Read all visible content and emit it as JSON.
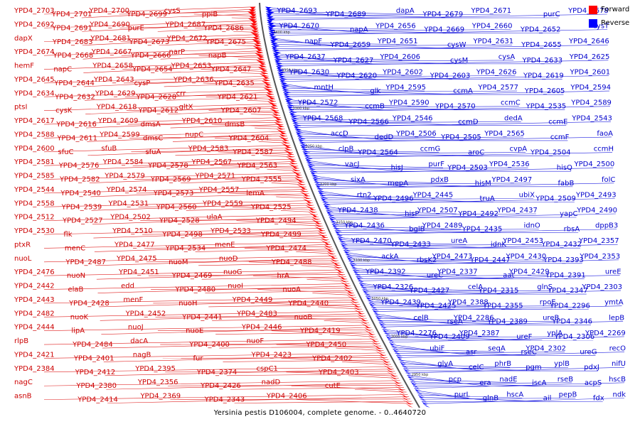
{
  "caption": "Yersinia pestis D106004, complete genome. - 0..4640720",
  "legend": {
    "forward_label": "Forward",
    "forward_color": "#ff0000",
    "reverse_label": "Reverse",
    "reverse_color": "#0000ff"
  },
  "colors": {
    "forward_text": "#cc0000",
    "forward_line": "#e02020",
    "reverse_text": "#0000cc",
    "reverse_line": "#2020e0",
    "backbone": "#555555"
  },
  "scale_ticks": [
    "3400 kbp",
    "3350 kbp",
    "3300 kbp",
    "3250 kbp",
    "3200 kbp",
    "3150 kbp",
    "3100 kbp",
    "3050 kbp",
    "3000 kbp",
    "2950 kbp"
  ],
  "forward_genes": [
    "YPD4_2703",
    "YPD4_2701",
    "YPD4_2700",
    "YPD4_2699",
    "cysS",
    "ppiB",
    "YPD4_2692",
    "YPD4_2691",
    "YPD4_2690",
    "purE",
    "YPD4_2687",
    "YPD4_2686",
    "dapX",
    "YPD4_2683",
    "YPD4_2681",
    "YPD4_2673",
    "YPD4_2672",
    "YPD4_2675",
    "YPD4_2674",
    "YPD4_2668",
    "YPD4_2667",
    "YPD4_2666",
    "narP",
    "napB",
    "hemF",
    "napC",
    "YPD4_2658",
    "YPD4_2654",
    "YPD4_2653",
    "YPD4_2647",
    "YPD4_2645",
    "YPD4_2644",
    "YPD4_2643",
    "cysP",
    "YPD4_2636",
    "YPD4_2635",
    "YPD4_2634",
    "YPD4_2632",
    "YPD4_2629",
    "YPD4_2628",
    "crr",
    "YPD4_2621",
    "ptsI",
    "cysK",
    "YPD4_2618",
    "YPD4_2612",
    "gltX",
    "YPD4_2607",
    "YPD4_2617",
    "YPD4_2616",
    "YPD4_2609",
    "dmsA",
    "YPD4_2610",
    "dmsB",
    "YPD4_2588",
    "YPD4_2611",
    "YPD4_2599",
    "dmsC",
    "nupC",
    "YPD4_2604",
    "YPD4_2600",
    "sfuC",
    "sfuB",
    "sfuA",
    "YPD4_2583",
    "YPD4_2587",
    "YPD4_2581",
    "YPD4_2576",
    "YPD4_2584",
    "YPD4_2578",
    "YPD4_2567",
    "YPD4_2563",
    "YPD4_2585",
    "YPD4_2582",
    "YPD4_2579",
    "YPD4_2569",
    "YPD4_2571",
    "YPD4_2555",
    "YPD4_2544",
    "YPD4_2540",
    "YPD4_2574",
    "YPD4_2573",
    "YPD4_2557",
    "lemA",
    "YPD4_2558",
    "YPD4_2539",
    "YPD4_2531",
    "YPD4_2560",
    "YPD4_2559",
    "YPD4_2525",
    "YPD4_2512",
    "YPD4_2527",
    "YPD4_2502",
    "YPD4_2528",
    "ulaA",
    "YPD4_2494",
    "YPD4_2530",
    "flk",
    "YPD4_2510",
    "YPD4_2498",
    "YPD4_2533",
    "YPD4_2499",
    "ptxR",
    "menC",
    "YPD4_2477",
    "YPD4_2534",
    "menE",
    "YPD4_2474",
    "nuoL",
    "YPD4_2487",
    "YPD4_2475",
    "nuoM",
    "nuoD",
    "YPD4_2488",
    "YPD4_2476",
    "nuoN",
    "YPD4_2451",
    "YPD4_2469",
    "nuoG",
    "hrA",
    "YPD4_2442",
    "elaB",
    "edd",
    "YPD4_2480",
    "nuoI",
    "nuoA",
    "YPD4_2443",
    "YPD4_2428",
    "menF",
    "nuoH",
    "YPD4_2449",
    "YPD4_2440",
    "YPD4_2482",
    "nuoK",
    "YPD4_2452",
    "YPD4_2441",
    "YPD4_2483",
    "nuoB",
    "YPD4_2444",
    "lipA",
    "nuoJ",
    "nuoE",
    "YPD4_2446",
    "YPD4_2419",
    "rlpB",
    "YPD4_2484",
    "dacA",
    "YPD4_2400",
    "nuoF",
    "YPD4_2450",
    "YPD4_2421",
    "YPD4_2401",
    "nagB",
    "fur",
    "YPD4_2423",
    "YPD4_2402",
    "YPD4_2384",
    "YPD4_2412",
    "YPD4_2395",
    "YPD4_2374",
    "cspC1",
    "YPD4_2403",
    "nagC",
    "YPD4_2380",
    "YPD4_2356",
    "YPD4_2426",
    "nadD",
    "cutE",
    "asnB",
    "YPD4_2414",
    "YPD4_2369",
    "YPD4_2343",
    "YPD4_2406"
  ],
  "reverse_genes": [
    "YPD4_2693",
    "YPD4_2689",
    "dapA",
    "YPD4_2679",
    "YPD4_2671",
    "purC",
    "YPD4_2678",
    "YPD4_2670",
    "napA",
    "YPD4_2656",
    "YPD4_2669",
    "YPD4_2660",
    "YPD4_2652",
    "cysT",
    "napF",
    "YPD4_2659",
    "YPD4_2651",
    "cysW",
    "YPD4_2631",
    "YPD4_2655",
    "YPD4_2646",
    "YPD4_2637",
    "YPD4_2627",
    "YPD4_2606",
    "cysM",
    "cysA",
    "YPD4_2633",
    "YPD4_2625",
    "YPD4_2630",
    "YPD4_2620",
    "YPD4_2602",
    "YPD4_2603",
    "YPD4_2626",
    "YPD4_2619",
    "YPD4_2601",
    "mntH",
    "glk",
    "YPD4_2595",
    "ccmA",
    "YPD4_2577",
    "YPD4_2605",
    "YPD4_2594",
    "YPD4_2572",
    "ccmB",
    "YPD4_2590",
    "YPD4_2570",
    "ccmC",
    "YPD4_2535",
    "YPD4_2589",
    "YPD4_2568",
    "YPD4_2566",
    "YPD4_2546",
    "ccmD",
    "dedA",
    "ccmE",
    "YPD4_2543",
    "accD",
    "dedD",
    "YPD4_2506",
    "YPD4_2505",
    "YPD4_2565",
    "ccmF",
    "faoA",
    "clpB",
    "YPD4_2564",
    "ccmG",
    "aroC",
    "cvpA",
    "YPD4_2504",
    "ccmH",
    "vacJ",
    "hisJ",
    "purF",
    "YPD4_2503",
    "YPD4_2536",
    "hisQ",
    "YPD4_2500",
    "sixA",
    "mepA",
    "pdxB",
    "hisM",
    "YPD4_2497",
    "fabB",
    "folC",
    "rtn2",
    "YPD4_2496",
    "YPD4_2445",
    "truA",
    "ubiX",
    "YPD4_2509",
    "YPD4_2493",
    "YPD4_2438",
    "hisP",
    "YPD4_2507",
    "YPD4_2492",
    "YPD4_2437",
    "yapC",
    "YPD4_2490",
    "YPD4_2436",
    "bglB",
    "YPD4_2489",
    "YPD4_2435",
    "idnO",
    "rbsA",
    "dppB3",
    "YPD4_2470",
    "YPD4_2433",
    "ureA",
    "idnK",
    "YPD4_2453",
    "YPD4_2432",
    "YPD4_2357",
    "ackA",
    "rbsK2",
    "YPD4_2473",
    "YPD4_2447",
    "YPD4_2430",
    "YPD4_2393",
    "YPD4_2353",
    "YPD4_2392",
    "ureC",
    "YPD4_2337",
    "aat",
    "YPD4_2429",
    "YPD4_2391",
    "ureE",
    "YPD4_2326",
    "YPD4_2427",
    "celA",
    "YPD4_2315",
    "glnS",
    "YPD4_2347",
    "YPD4_2303",
    "YPD4_2439",
    "YPD4_2425",
    "YPD4_2388",
    "YPD4_2355",
    "rpoE",
    "YPD4_2296",
    "ymtA",
    "celB",
    "rseA",
    "YPD4_2286",
    "YPD4_2389",
    "ureB",
    "YPD4_2346",
    "lepB",
    "YPD4_2276",
    "YPD4_2409",
    "YPD4_2387",
    "ureF",
    "yplA",
    "YPD4_2306",
    "YPD4_2269",
    "ubiF",
    "asr",
    "seqA",
    "rseC",
    "YPD4_2302",
    "ureG",
    "recO",
    "glyA",
    "celC",
    "phrB",
    "pgm",
    "yplB",
    "pdxJ",
    "nifU",
    "pcp",
    "era",
    "nadE",
    "iscA",
    "rseB",
    "acpS",
    "hscB",
    "purL",
    "glnB",
    "hscA",
    "ail",
    "pepB",
    "fdx",
    "ndk"
  ]
}
